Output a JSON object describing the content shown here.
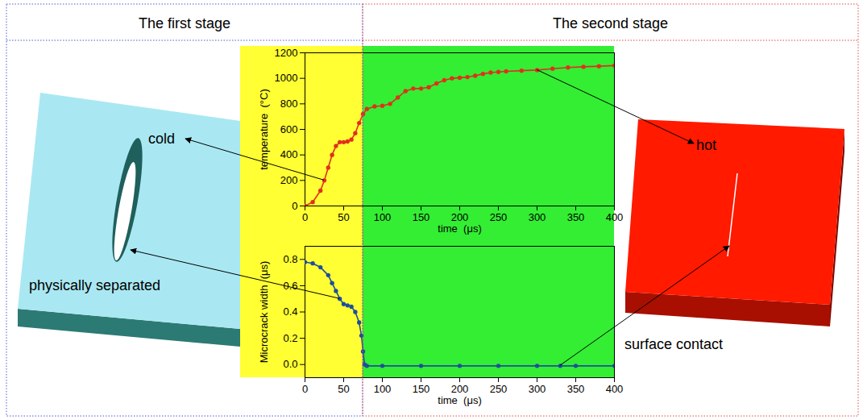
{
  "stages": [
    {
      "title": "The first stage",
      "from": 0,
      "to": 75,
      "color": "#ffff33"
    },
    {
      "title": "The second stage",
      "from": 75,
      "to": 400,
      "color": "#33ee33"
    }
  ],
  "chart_data": [
    {
      "type": "line",
      "x_label": "time  (μs)",
      "y_label": "temperature  (°C)",
      "x": [
        0,
        10,
        20,
        25,
        30,
        35,
        40,
        45,
        50,
        55,
        60,
        65,
        70,
        75,
        80,
        90,
        100,
        110,
        120,
        130,
        140,
        150,
        160,
        170,
        180,
        190,
        200,
        210,
        220,
        230,
        240,
        250,
        260,
        280,
        300,
        320,
        340,
        360,
        380,
        400
      ],
      "values": [
        0,
        30,
        120,
        200,
        300,
        400,
        470,
        500,
        500,
        505,
        520,
        570,
        650,
        720,
        760,
        780,
        785,
        800,
        850,
        900,
        920,
        920,
        930,
        960,
        985,
        1000,
        1005,
        1010,
        1020,
        1035,
        1045,
        1050,
        1055,
        1060,
        1065,
        1075,
        1085,
        1090,
        1095,
        1100
      ],
      "color": "#e0301e",
      "marker": "dot",
      "xlim": [
        0,
        400
      ],
      "xticks": [
        0,
        50,
        100,
        150,
        200,
        250,
        300,
        350,
        400
      ],
      "ylim": [
        0,
        1200
      ],
      "yticks": [
        0,
        200,
        400,
        600,
        800,
        1000,
        1200
      ],
      "annotations": [
        {
          "text": "cold",
          "x": 25,
          "y": 200
        },
        {
          "text": "hot",
          "x": 300,
          "y": 1065
        }
      ]
    },
    {
      "type": "line",
      "x_label": "time  (μs)",
      "y_label": "Microcrack width  (μs)",
      "x": [
        0,
        10,
        20,
        30,
        35,
        40,
        45,
        50,
        55,
        60,
        65,
        70,
        73,
        75,
        77,
        80,
        100,
        150,
        200,
        250,
        300,
        330,
        350,
        400
      ],
      "values": [
        0.78,
        0.77,
        0.74,
        0.68,
        0.62,
        0.56,
        0.5,
        0.46,
        0.45,
        0.44,
        0.4,
        0.32,
        0.22,
        0.1,
        0.0,
        -0.01,
        -0.01,
        -0.01,
        -0.01,
        -0.01,
        -0.01,
        -0.01,
        -0.01,
        -0.01
      ],
      "color": "#1f4e9c",
      "marker": "dot",
      "xlim": [
        0,
        400
      ],
      "xticks": [
        0,
        50,
        100,
        150,
        200,
        250,
        300,
        350,
        400
      ],
      "ylim": [
        -0.1,
        0.9
      ],
      "yticks": [
        {
          "value": 0,
          "label": "0.0"
        },
        0.2,
        0.4,
        0.6,
        0.8
      ],
      "annotations": [
        {
          "text": "physically separated",
          "x": 45,
          "y": 0.5
        },
        {
          "text": "surface contact",
          "x": 330,
          "y": -0.01
        }
      ]
    }
  ]
}
